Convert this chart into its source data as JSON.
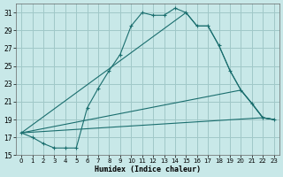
{
  "title": "",
  "xlabel": "Humidex (Indice chaleur)",
  "bg_color": "#c8e8e8",
  "grid_color": "#a0c8c8",
  "line_color": "#1a6e6e",
  "xlim": [
    -0.5,
    23.5
  ],
  "ylim": [
    15,
    32
  ],
  "yticks": [
    15,
    17,
    19,
    21,
    23,
    25,
    27,
    29,
    31
  ],
  "xticks": [
    0,
    1,
    2,
    3,
    4,
    5,
    6,
    7,
    8,
    9,
    10,
    11,
    12,
    13,
    14,
    15,
    16,
    17,
    18,
    19,
    20,
    21,
    22,
    23
  ],
  "series_main": {
    "x": [
      0,
      1,
      2,
      3,
      4,
      5,
      6,
      7,
      8,
      9,
      10,
      11,
      12,
      13,
      14,
      15,
      16,
      17,
      18,
      19,
      20,
      21,
      22,
      23
    ],
    "y": [
      17.5,
      17.0,
      16.3,
      15.8,
      15.8,
      15.8,
      20.3,
      22.5,
      24.5,
      26.3,
      29.5,
      31.0,
      30.7,
      30.7,
      31.5,
      31.0,
      29.5,
      29.5,
      27.3,
      24.5,
      22.3,
      20.8,
      19.2,
      19.0
    ]
  },
  "series_lines": [
    {
      "x": [
        0,
        22,
        23
      ],
      "y": [
        17.5,
        19.2,
        19.0
      ]
    },
    {
      "x": [
        0,
        20,
        21,
        22,
        23
      ],
      "y": [
        17.5,
        22.3,
        20.8,
        19.2,
        19.0
      ]
    },
    {
      "x": [
        0,
        15,
        16,
        17,
        18,
        19,
        20,
        21,
        22,
        23
      ],
      "y": [
        17.5,
        31.0,
        29.5,
        29.5,
        27.3,
        24.5,
        22.3,
        20.8,
        19.2,
        19.0
      ]
    }
  ]
}
